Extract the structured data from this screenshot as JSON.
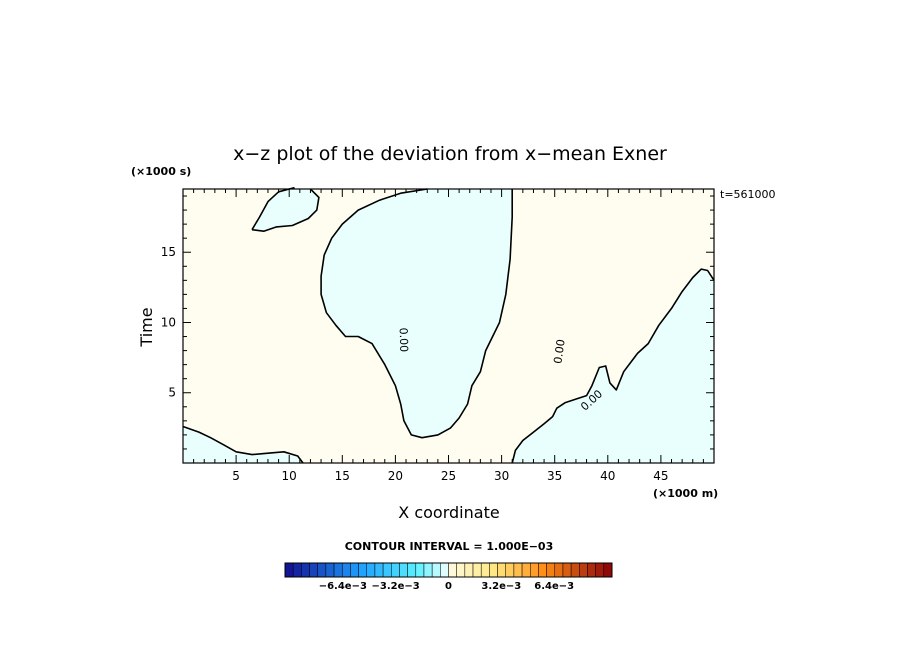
{
  "chart_data": {
    "type": "heatmap",
    "title": "x−z plot of the deviation from x−mean Exner",
    "xlabel": "X coordinate",
    "ylabel": "Time",
    "x_unit": "(×1000 m)",
    "y_unit": "(×1000 s)",
    "time_label": "t=561000",
    "xlim": [
      0,
      50
    ],
    "ylim": [
      0,
      19.5
    ],
    "x_ticks": [
      "5",
      "10",
      "15",
      "20",
      "25",
      "30",
      "35",
      "40",
      "45"
    ],
    "x_tick_values": [
      5,
      10,
      15,
      20,
      25,
      30,
      35,
      40,
      45
    ],
    "y_ticks": [
      "5",
      "10",
      "15"
    ],
    "y_tick_values": [
      5,
      10,
      15
    ],
    "contour_labels": [
      "0.00",
      "0.00",
      "0.00"
    ],
    "contour_interval": "CONTOUR INTERVAL = 1.000E−03",
    "colorbar_labels": [
      "−6.4e−3",
      "−3.2e−3",
      "0",
      "3.2e−3",
      "6.4e−3"
    ],
    "colorbar_range": [
      -0.0099,
      0.0099
    ],
    "colors": {
      "positive_fill": "#fffdf0",
      "negative_fill": "#e8fffe",
      "contour_line": "#000000"
    },
    "negative_regions": [
      {
        "name": "top-left blob",
        "points": [
          [
            6.5,
            16.6
          ],
          [
            7.2,
            17.5
          ],
          [
            8.0,
            18.6
          ],
          [
            9.0,
            19.3
          ],
          [
            10.5,
            19.6
          ],
          [
            12.0,
            19.5
          ],
          [
            12.8,
            18.9
          ],
          [
            12.6,
            18.0
          ],
          [
            11.8,
            17.4
          ],
          [
            10.3,
            16.9
          ],
          [
            8.8,
            16.8
          ],
          [
            7.6,
            16.5
          ]
        ]
      },
      {
        "name": "central band",
        "points": [
          [
            23.0,
            19.5
          ],
          [
            31.0,
            19.5
          ],
          [
            31.0,
            17.5
          ],
          [
            30.8,
            14.5
          ],
          [
            30.4,
            12.0
          ],
          [
            29.8,
            10.0
          ],
          [
            28.5,
            8.0
          ],
          [
            28.0,
            6.5
          ],
          [
            27.2,
            5.5
          ],
          [
            26.8,
            4.2
          ],
          [
            26.0,
            3.2
          ],
          [
            25.2,
            2.5
          ],
          [
            24.0,
            2.0
          ],
          [
            22.5,
            1.8
          ],
          [
            21.5,
            2.0
          ],
          [
            20.8,
            3.0
          ],
          [
            20.5,
            4.2
          ],
          [
            20.0,
            5.5
          ],
          [
            19.0,
            7.0
          ],
          [
            17.8,
            8.5
          ],
          [
            16.5,
            9.0
          ],
          [
            15.3,
            9.0
          ],
          [
            14.4,
            9.8
          ],
          [
            13.5,
            10.7
          ],
          [
            13.0,
            12.0
          ],
          [
            13.0,
            13.3
          ],
          [
            13.3,
            14.8
          ],
          [
            14.0,
            16.0
          ],
          [
            15.0,
            17.0
          ],
          [
            16.5,
            18.0
          ],
          [
            18.5,
            18.7
          ],
          [
            20.5,
            19.2
          ]
        ]
      },
      {
        "name": "lower-right region",
        "points": [
          [
            50,
            0
          ],
          [
            50,
            13.0
          ],
          [
            49.4,
            13.7
          ],
          [
            48.8,
            13.8
          ],
          [
            48.0,
            13.2
          ],
          [
            47.0,
            12.2
          ],
          [
            46.0,
            11.0
          ],
          [
            44.8,
            9.8
          ],
          [
            43.8,
            8.5
          ],
          [
            42.8,
            7.8
          ],
          [
            41.5,
            6.5
          ],
          [
            40.8,
            5.2
          ],
          [
            40.2,
            5.7
          ],
          [
            39.8,
            6.9
          ],
          [
            39.2,
            6.8
          ],
          [
            38.5,
            5.5
          ],
          [
            38.0,
            4.8
          ],
          [
            37.2,
            4.6
          ],
          [
            36.0,
            4.3
          ],
          [
            35.2,
            3.9
          ],
          [
            34.8,
            3.3
          ],
          [
            34.0,
            2.8
          ],
          [
            33.0,
            2.2
          ],
          [
            32.0,
            1.6
          ],
          [
            31.3,
            0.9
          ],
          [
            31.0,
            0.0
          ]
        ]
      },
      {
        "name": "bottom-left wedge",
        "points": [
          [
            0,
            0
          ],
          [
            0,
            2.6
          ],
          [
            1.5,
            2.2
          ],
          [
            2.6,
            1.8
          ],
          [
            3.8,
            1.3
          ],
          [
            5.0,
            0.8
          ],
          [
            6.5,
            0.6
          ],
          [
            8.0,
            0.7
          ],
          [
            9.5,
            0.8
          ],
          [
            10.8,
            0.5
          ],
          [
            11.3,
            0.0
          ]
        ]
      }
    ]
  }
}
